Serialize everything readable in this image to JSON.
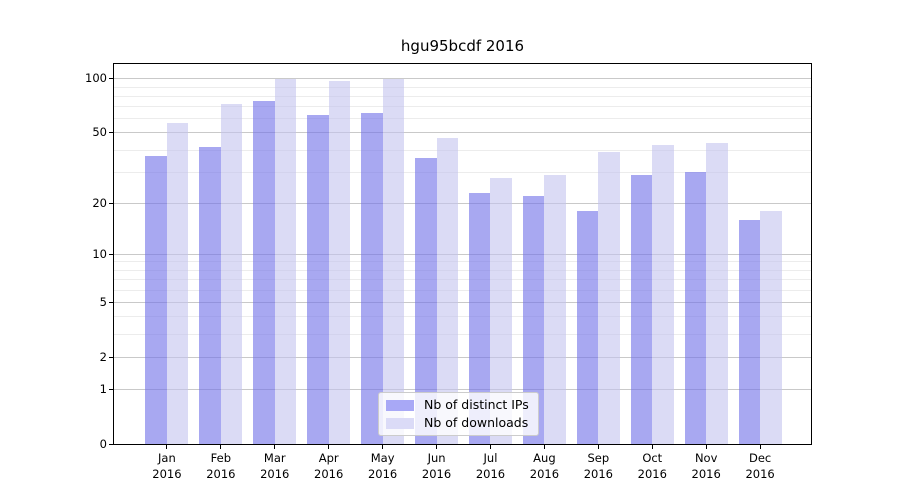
{
  "chart_data": {
    "type": "bar",
    "title": "hgu95bcdf 2016",
    "categories": [
      "Jan 2016",
      "Feb 2016",
      "Mar 2016",
      "Apr 2016",
      "May 2016",
      "Jun 2016",
      "Jul 2016",
      "Aug 2016",
      "Sep 2016",
      "Oct 2016",
      "Nov 2016",
      "Dec 2016"
    ],
    "series": [
      {
        "name": "Nb of distinct IPs",
        "values": [
          37,
          42,
          75,
          63,
          65,
          36,
          23,
          22,
          18,
          29,
          30,
          16
        ],
        "fill": "rgba(115,115,232,0.62)",
        "swatch": "#a8a8f6"
      },
      {
        "name": "Nb of downloads",
        "values": [
          57,
          73,
          100,
          97,
          100,
          47,
          28,
          29,
          39,
          43,
          44,
          18
        ],
        "fill": "rgba(195,195,238,0.60)",
        "swatch": "#dbdbf7"
      }
    ],
    "yscale": "log1p",
    "ylim": [
      0,
      121
    ],
    "y_major_ticks": [
      0,
      1,
      2,
      5,
      10,
      20,
      50,
      100
    ],
    "y_minor_gridlines": [
      3,
      4,
      6,
      7,
      8,
      9,
      30,
      40,
      60,
      70,
      80,
      90
    ],
    "grid": true,
    "grid_color_major": "#c9c9c9",
    "grid_color_minor": "#ececec",
    "axis_color": "#000000",
    "legend_position": "lower center"
  }
}
